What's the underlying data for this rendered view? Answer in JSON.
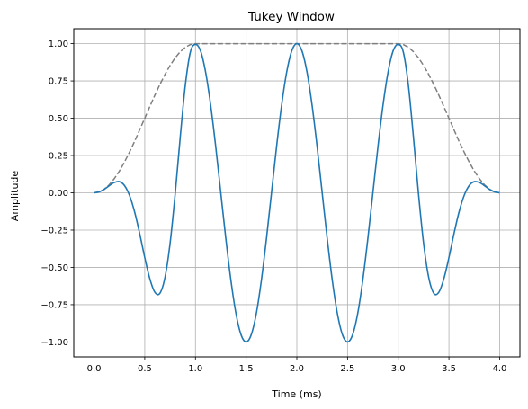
{
  "chart_data": {
    "type": "line",
    "title": "Tukey Window",
    "xlabel": "Time (ms)",
    "ylabel": "Amplitude",
    "xlim": [
      -0.2,
      4.2
    ],
    "ylim": [
      -1.1,
      1.1
    ],
    "grid": true,
    "x_ticks": [
      0.0,
      0.5,
      1.0,
      1.5,
      2.0,
      2.5,
      3.0,
      3.5,
      4.0
    ],
    "x_tick_labels": [
      "0.0",
      "0.5",
      "1.0",
      "1.5",
      "2.0",
      "2.5",
      "3.0",
      "3.5",
      "4.0"
    ],
    "y_ticks": [
      -1.0,
      -0.75,
      -0.5,
      -0.25,
      0.0,
      0.25,
      0.5,
      0.75,
      1.0
    ],
    "y_tick_labels": [
      "−1.00",
      "−0.75",
      "−0.50",
      "−0.25",
      "0.00",
      "0.25",
      "0.50",
      "0.75",
      "1.00"
    ],
    "series": [
      {
        "style": "solid",
        "color": "#1f77b4",
        "x": [
          0.0,
          0.05,
          0.1,
          0.15,
          0.2,
          0.25,
          0.3,
          0.35,
          0.4,
          0.45,
          0.5,
          0.55,
          0.6,
          0.65,
          0.7,
          0.75,
          0.8,
          0.85,
          0.9,
          0.95,
          1.0,
          1.05,
          1.1,
          1.15,
          1.2,
          1.25,
          1.3,
          1.35,
          1.4,
          1.45,
          1.5,
          1.55,
          1.6,
          1.65,
          1.7,
          1.75,
          1.8,
          1.85,
          1.9,
          1.95,
          2.0,
          2.05,
          2.1,
          2.15,
          2.2,
          2.25,
          2.3,
          2.35,
          2.4,
          2.45,
          2.5,
          2.55,
          2.6,
          2.65,
          2.7,
          2.75,
          2.8,
          2.85,
          2.9,
          2.95,
          3.0,
          3.05,
          3.1,
          3.15,
          3.2,
          3.25,
          3.3,
          3.35,
          3.4,
          3.45,
          3.5,
          3.55,
          3.6,
          3.65,
          3.7,
          3.75,
          3.8,
          3.85,
          3.9,
          3.95,
          4.0
        ],
        "y": [
          0.0,
          0.006,
          0.023,
          0.048,
          0.069,
          0.075,
          0.049,
          -0.018,
          -0.128,
          -0.273,
          -0.434,
          -0.576,
          -0.667,
          -0.673,
          -0.566,
          -0.338,
          -0.008,
          0.373,
          0.721,
          0.944,
          0.995,
          0.952,
          0.81,
          0.588,
          0.309,
          0.0,
          -0.309,
          -0.588,
          -0.81,
          -0.952,
          -1.0,
          -0.952,
          -0.81,
          -0.588,
          -0.309,
          0.0,
          0.309,
          0.588,
          0.81,
          0.952,
          1.0,
          0.952,
          0.81,
          0.588,
          0.309,
          0.0,
          -0.309,
          -0.588,
          -0.81,
          -0.952,
          -1.0,
          -0.952,
          -0.81,
          -0.588,
          -0.309,
          0.0,
          0.309,
          0.588,
          0.81,
          0.952,
          0.995,
          0.944,
          0.721,
          0.373,
          -0.008,
          -0.338,
          -0.566,
          -0.673,
          -0.667,
          -0.576,
          -0.434,
          -0.273,
          -0.128,
          -0.018,
          0.049,
          0.075,
          0.069,
          0.048,
          0.023,
          0.006,
          0.0
        ]
      },
      {
        "style": "dashed",
        "color": "#7f7f7f",
        "x": [
          0.0,
          0.05,
          0.1,
          0.15,
          0.2,
          0.25,
          0.3,
          0.35,
          0.4,
          0.45,
          0.5,
          0.55,
          0.6,
          0.65,
          0.7,
          0.75,
          0.8,
          0.85,
          0.9,
          0.95,
          1.0,
          2.0,
          3.0,
          3.05,
          3.1,
          3.15,
          3.2,
          3.25,
          3.3,
          3.35,
          3.4,
          3.45,
          3.5,
          3.55,
          3.6,
          3.65,
          3.7,
          3.75,
          3.8,
          3.85,
          3.9,
          3.95,
          4.0
        ],
        "y": [
          0.0,
          0.006,
          0.024,
          0.054,
          0.095,
          0.146,
          0.206,
          0.273,
          0.345,
          0.422,
          0.5,
          0.578,
          0.655,
          0.727,
          0.794,
          0.854,
          0.905,
          0.946,
          0.976,
          0.994,
          1.0,
          1.0,
          1.0,
          0.994,
          0.976,
          0.946,
          0.905,
          0.854,
          0.794,
          0.727,
          0.655,
          0.578,
          0.5,
          0.422,
          0.345,
          0.273,
          0.206,
          0.146,
          0.095,
          0.054,
          0.024,
          0.006,
          0.0
        ]
      }
    ]
  }
}
